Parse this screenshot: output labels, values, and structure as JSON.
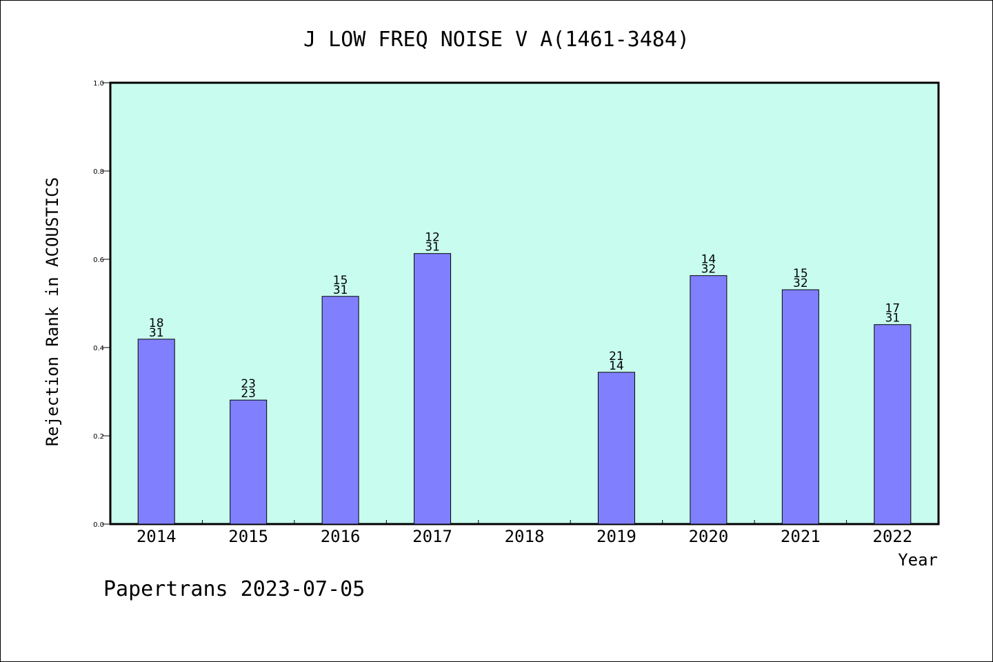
{
  "chart_data": {
    "type": "bar",
    "title": "J LOW FREQ NOISE V A(1461-3484)",
    "xlabel": "Year",
    "ylabel": "Rejection Rank in ACOUSTICS",
    "ylim": [
      0,
      1.0
    ],
    "yticks": [
      "0.0",
      "0.2",
      "0.4",
      "0.6",
      "0.8",
      "1.0"
    ],
    "categories": [
      "2014",
      "2015",
      "2016",
      "2017",
      "2018",
      "2019",
      "2020",
      "2021",
      "2022"
    ],
    "values": [
      0.419,
      0.281,
      0.516,
      0.613,
      null,
      0.344,
      0.563,
      0.531,
      0.452
    ],
    "label_top": [
      "18",
      "23",
      "15",
      "12",
      "",
      "21",
      "14",
      "15",
      "17"
    ],
    "label_bottom": [
      "31",
      "23",
      "31",
      "31",
      "",
      "14",
      "32",
      "32",
      "31"
    ],
    "grid": false,
    "colors": {
      "plot_background": "#c8fcee",
      "bar_fill": "#8080ff",
      "bar_stroke": "#000000"
    }
  },
  "footer": {
    "text": "Papertrans 2023-07-05"
  }
}
